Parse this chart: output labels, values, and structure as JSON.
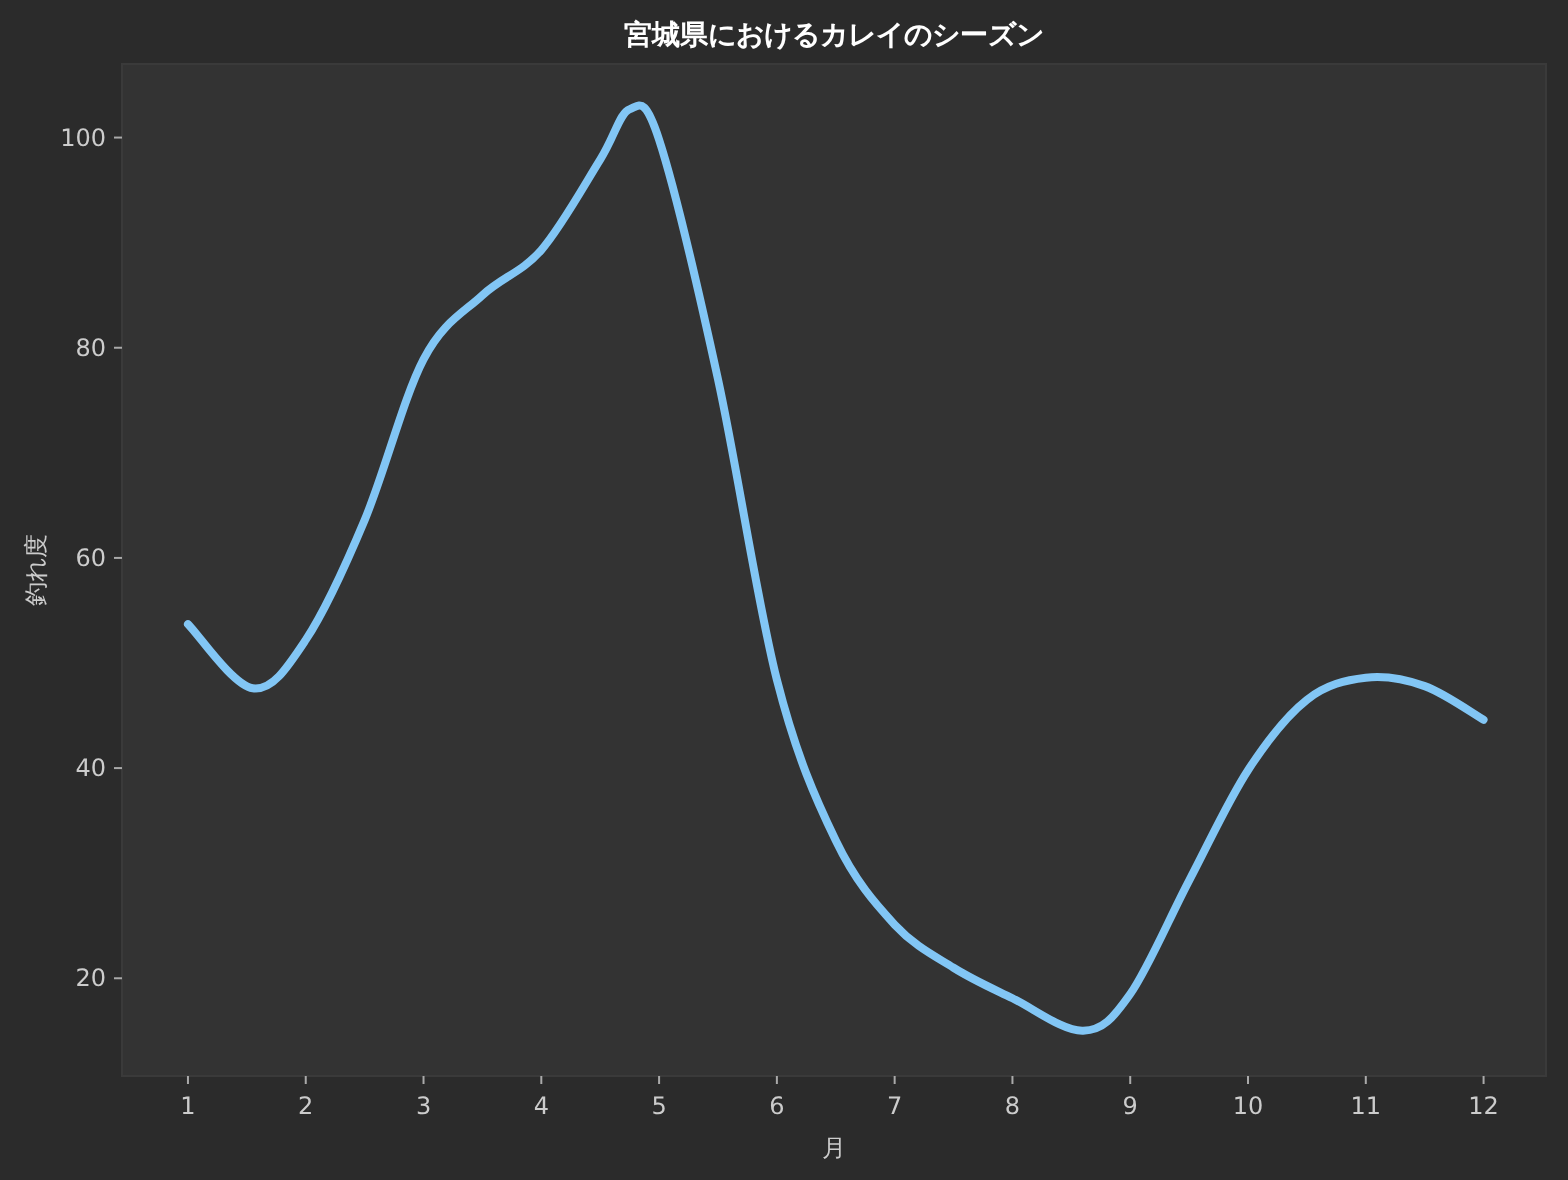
{
  "chart_data": {
    "type": "line",
    "title": "宮城県におけるカレイのシーズン",
    "xlabel": "月",
    "ylabel": "釣れ度",
    "x": [
      1,
      1.55,
      2,
      2.5,
      3,
      3.5,
      4,
      4.5,
      4.75,
      5,
      5.5,
      6,
      6.5,
      7,
      7.5,
      8,
      8.6,
      9,
      9.5,
      10,
      10.5,
      11,
      11.5,
      12
    ],
    "series": [
      {
        "color": "#82c6f5",
        "values": [
          53.7,
          47.6,
          52.2,
          63.6,
          78.9,
          85,
          89.3,
          97.9,
          102.7,
          99.8,
          77,
          48.4,
          33.1,
          25.1,
          21,
          18.1,
          15,
          18.5,
          29.3,
          39.8,
          46.5,
          48.6,
          47.8,
          44.6
        ]
      }
    ],
    "xlim": [
      0.44,
      12.53
    ],
    "ylim": [
      10.7,
      107
    ],
    "xticks": [
      1,
      2,
      3,
      4,
      5,
      6,
      7,
      8,
      9,
      10,
      11,
      12
    ],
    "yticks": [
      20,
      40,
      60,
      80,
      100
    ],
    "grid": false,
    "marker": "none",
    "line_style": "solid"
  }
}
